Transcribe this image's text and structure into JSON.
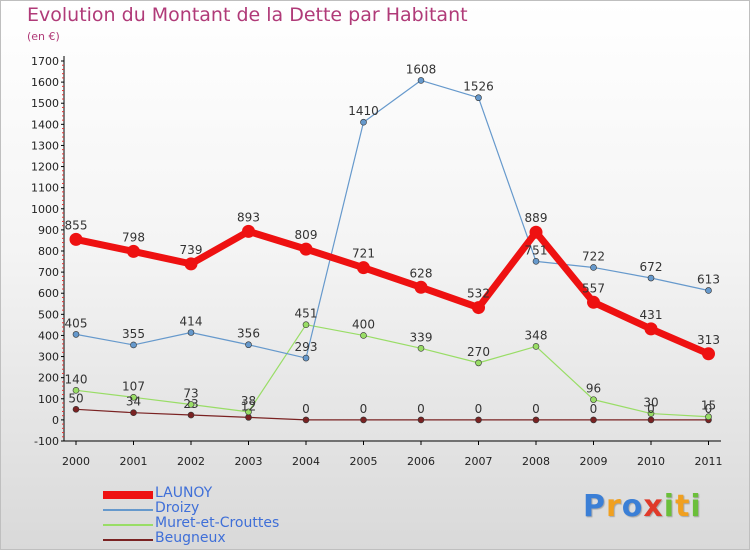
{
  "title": "Evolution du Montant de la Dette par Habitant",
  "subtitle": "(en €)",
  "brand": [
    "P",
    "r",
    "o",
    "x",
    "i",
    "t",
    "i"
  ],
  "brand_colors": [
    "#3b7fd6",
    "#f0a020",
    "#3b7fd6",
    "#e03a2a",
    "#6bbf3a",
    "#f0a020",
    "#6bbf3a"
  ],
  "chart_data": {
    "type": "line",
    "categories": [
      "2000",
      "2001",
      "2002",
      "2003",
      "2004",
      "2005",
      "2006",
      "2007",
      "2008",
      "2009",
      "2010",
      "2011"
    ],
    "y_ticks": [
      "-100",
      "0",
      "100",
      "200",
      "300",
      "400",
      "500",
      "600",
      "700",
      "800",
      "900",
      "1000",
      "1100",
      "1200",
      "1300",
      "1400",
      "1500",
      "1600",
      "1700"
    ],
    "ylim": [
      -100,
      1700
    ],
    "grid": false,
    "legend_position": "bottom-left",
    "series": [
      {
        "name": "LAUNOY",
        "color": "#ee1111",
        "values": [
          855,
          798,
          739,
          893,
          809,
          721,
          628,
          532,
          889,
          557,
          431,
          313
        ]
      },
      {
        "name": "Droizy",
        "color": "#6699cc",
        "values": [
          405,
          355,
          414,
          356,
          293,
          1410,
          1608,
          1526,
          751,
          722,
          672,
          613
        ]
      },
      {
        "name": "Muret-et-Crouttes",
        "color": "#99dd66",
        "values": [
          140,
          107,
          73,
          38,
          451,
          400,
          339,
          270,
          348,
          96,
          30,
          15
        ]
      },
      {
        "name": "Beugneux",
        "color": "#7a2222",
        "values": [
          50,
          34,
          23,
          12,
          0,
          0,
          0,
          0,
          0,
          0,
          0,
          0
        ]
      }
    ]
  }
}
